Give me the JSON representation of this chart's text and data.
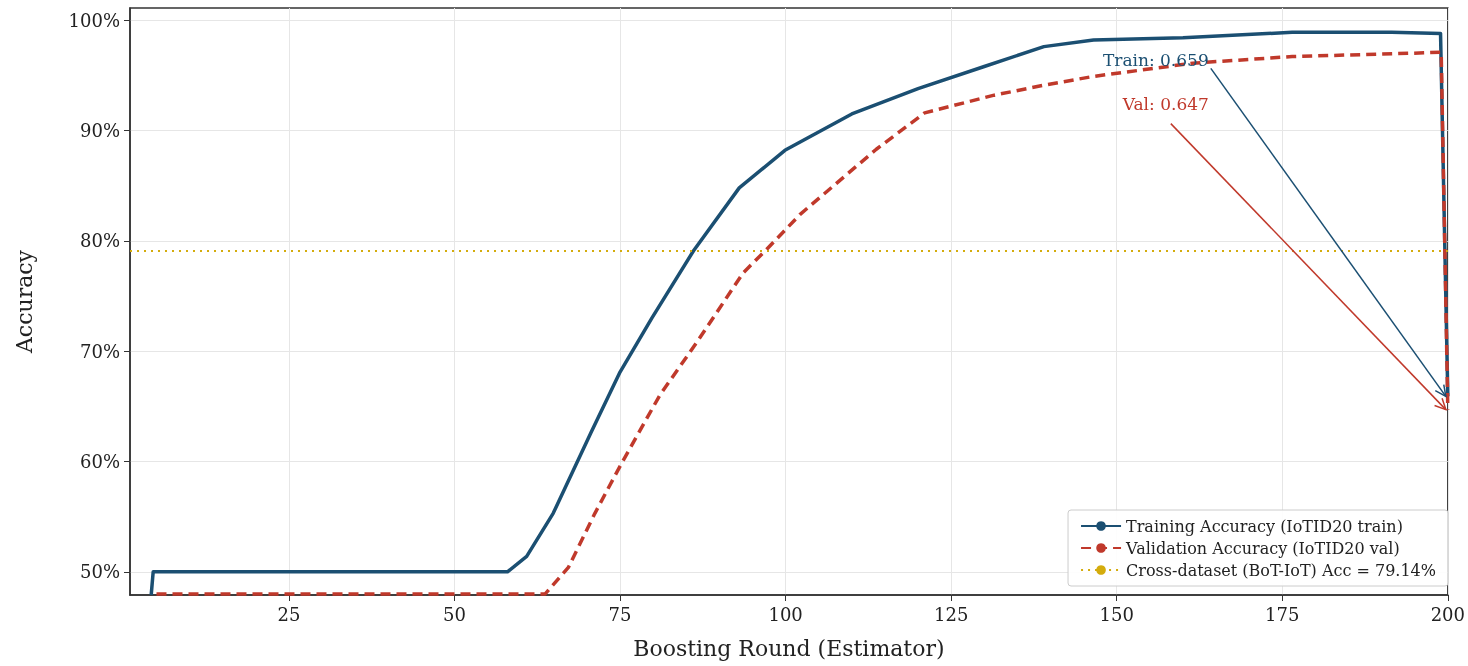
{
  "chart_data": {
    "type": "line",
    "xlabel": "Boosting Round (Estimator)",
    "ylabel": "Accuracy",
    "xlim": [
      1,
      200
    ],
    "xticks": [
      25,
      50,
      75,
      100,
      125,
      150,
      175,
      200
    ],
    "ylim": [
      47.9,
      101.1
    ],
    "yticks": [
      {
        "value": 50,
        "label": "50%"
      },
      {
        "value": 60,
        "label": "60%"
      },
      {
        "value": 70,
        "label": "70%"
      },
      {
        "value": 80,
        "label": "80%"
      },
      {
        "value": 90,
        "label": "90%"
      },
      {
        "value": 100,
        "label": "100%"
      }
    ],
    "grid": true,
    "legend": "bottom right",
    "marker": "none",
    "series": [
      {
        "name": "Training Accuracy (IoTID20 train)",
        "color": "#1b4f72",
        "line_style": "solid",
        "x": [
          4.2,
          4.5,
          20,
          40,
          58,
          60.9,
          64.9,
          70.6,
          75,
          79.8,
          86.1,
          93,
          99.9,
          110,
          120,
          130,
          139,
          146.5,
          160,
          176.5,
          191.5,
          198.9,
          200
        ],
        "values": [
          47.9,
          50,
          50,
          50,
          50,
          51.4,
          55.3,
          62.6,
          68.1,
          73,
          79.1,
          84.8,
          88.2,
          91.5,
          93.8,
          95.8,
          97.6,
          98.2,
          98.4,
          98.9,
          98.9,
          98.8,
          65.9
        ]
      },
      {
        "name": "Validation Accuracy (IoTID20 val)",
        "color": "#c0392b",
        "line_style": "dashed",
        "x": [
          5,
          20,
          40,
          63.7,
          67.2,
          71.2,
          75.2,
          81,
          86.7,
          93.6,
          97.1,
          102.2,
          113.7,
          121,
          131.5,
          139,
          146.5,
          161.5,
          176.5,
          194.5,
          199,
          200
        ],
        "values": [
          48,
          48,
          48,
          48,
          50.4,
          55.3,
          59.8,
          66,
          70.9,
          77.1,
          79.2,
          82.4,
          88.3,
          91.6,
          93.2,
          94.1,
          94.9,
          96.1,
          96.7,
          97,
          97.1,
          64.7
        ]
      }
    ],
    "ref_lines": [
      {
        "axis": "y",
        "value": 79.14,
        "label": "Cross-dataset (BoT-IoT) Acc = 79.14%",
        "color": "#d4ac0d",
        "line_style": "dotted"
      }
    ],
    "annotations": [
      {
        "text": "Train: 0.659",
        "x": 200,
        "y": 65.9
      },
      {
        "text": "Val: 0.647",
        "x": 200,
        "y": 64.7
      }
    ]
  }
}
